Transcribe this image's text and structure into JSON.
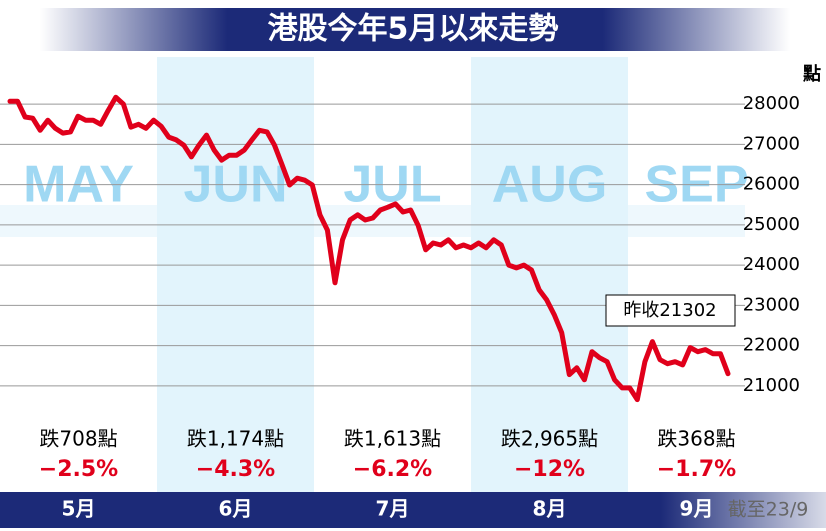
{
  "title": "港股今年5月以來走勢",
  "chart_data": {
    "type": "line",
    "unit": "點",
    "series": [
      {
        "color": "#e0001b",
        "values": [
          28070,
          28070,
          27680,
          27650,
          27350,
          27600,
          27400,
          27280,
          27310,
          27700,
          27600,
          27600,
          27500,
          27850,
          28170,
          28000,
          27430,
          27500,
          27400,
          27600,
          27450,
          27180,
          27110,
          26980,
          26690,
          26980,
          27230,
          26860,
          26610,
          26730,
          26730,
          26860,
          27110,
          27350,
          27310,
          26980,
          26490,
          25990,
          26160,
          26110,
          25990,
          25250,
          24870,
          23560,
          24630,
          25120,
          25250,
          25120,
          25170,
          25370,
          25440,
          25520,
          25320,
          25370,
          24990,
          24380,
          24550,
          24500,
          24630,
          24430,
          24500,
          24430,
          24550,
          24430,
          24630,
          24500,
          24000,
          23930,
          24000,
          23880,
          23390,
          23140,
          22770,
          22320,
          21280,
          21450,
          21150,
          21850,
          21700,
          21600,
          21150,
          20950,
          20950,
          20660,
          21600,
          22100,
          21650,
          21550,
          21600,
          21520,
          21950,
          21850,
          21900,
          21800,
          21800,
          21302
        ]
      }
    ],
    "ylim": [
      20500,
      28500
    ],
    "yticks": [
      21000,
      22000,
      23000,
      24000,
      25000,
      26000,
      27000,
      28000
    ],
    "grid": true,
    "annotation": "昨收21302",
    "months": [
      {
        "label": "5月",
        "name": "MAY",
        "change": "跌708點",
        "pct": "−2.5%"
      },
      {
        "label": "6月",
        "name": "JUN",
        "change": "跌1,174點",
        "pct": "−4.3%"
      },
      {
        "label": "7月",
        "name": "JUL",
        "change": "跌1,613點",
        "pct": "−6.2%"
      },
      {
        "label": "8月",
        "name": "AUG",
        "change": "跌2,965點",
        "pct": "−12%"
      },
      {
        "label": "9月",
        "name": "SEP",
        "change": "跌368點",
        "pct": "−1.7%"
      }
    ],
    "note": "截至23/9"
  }
}
